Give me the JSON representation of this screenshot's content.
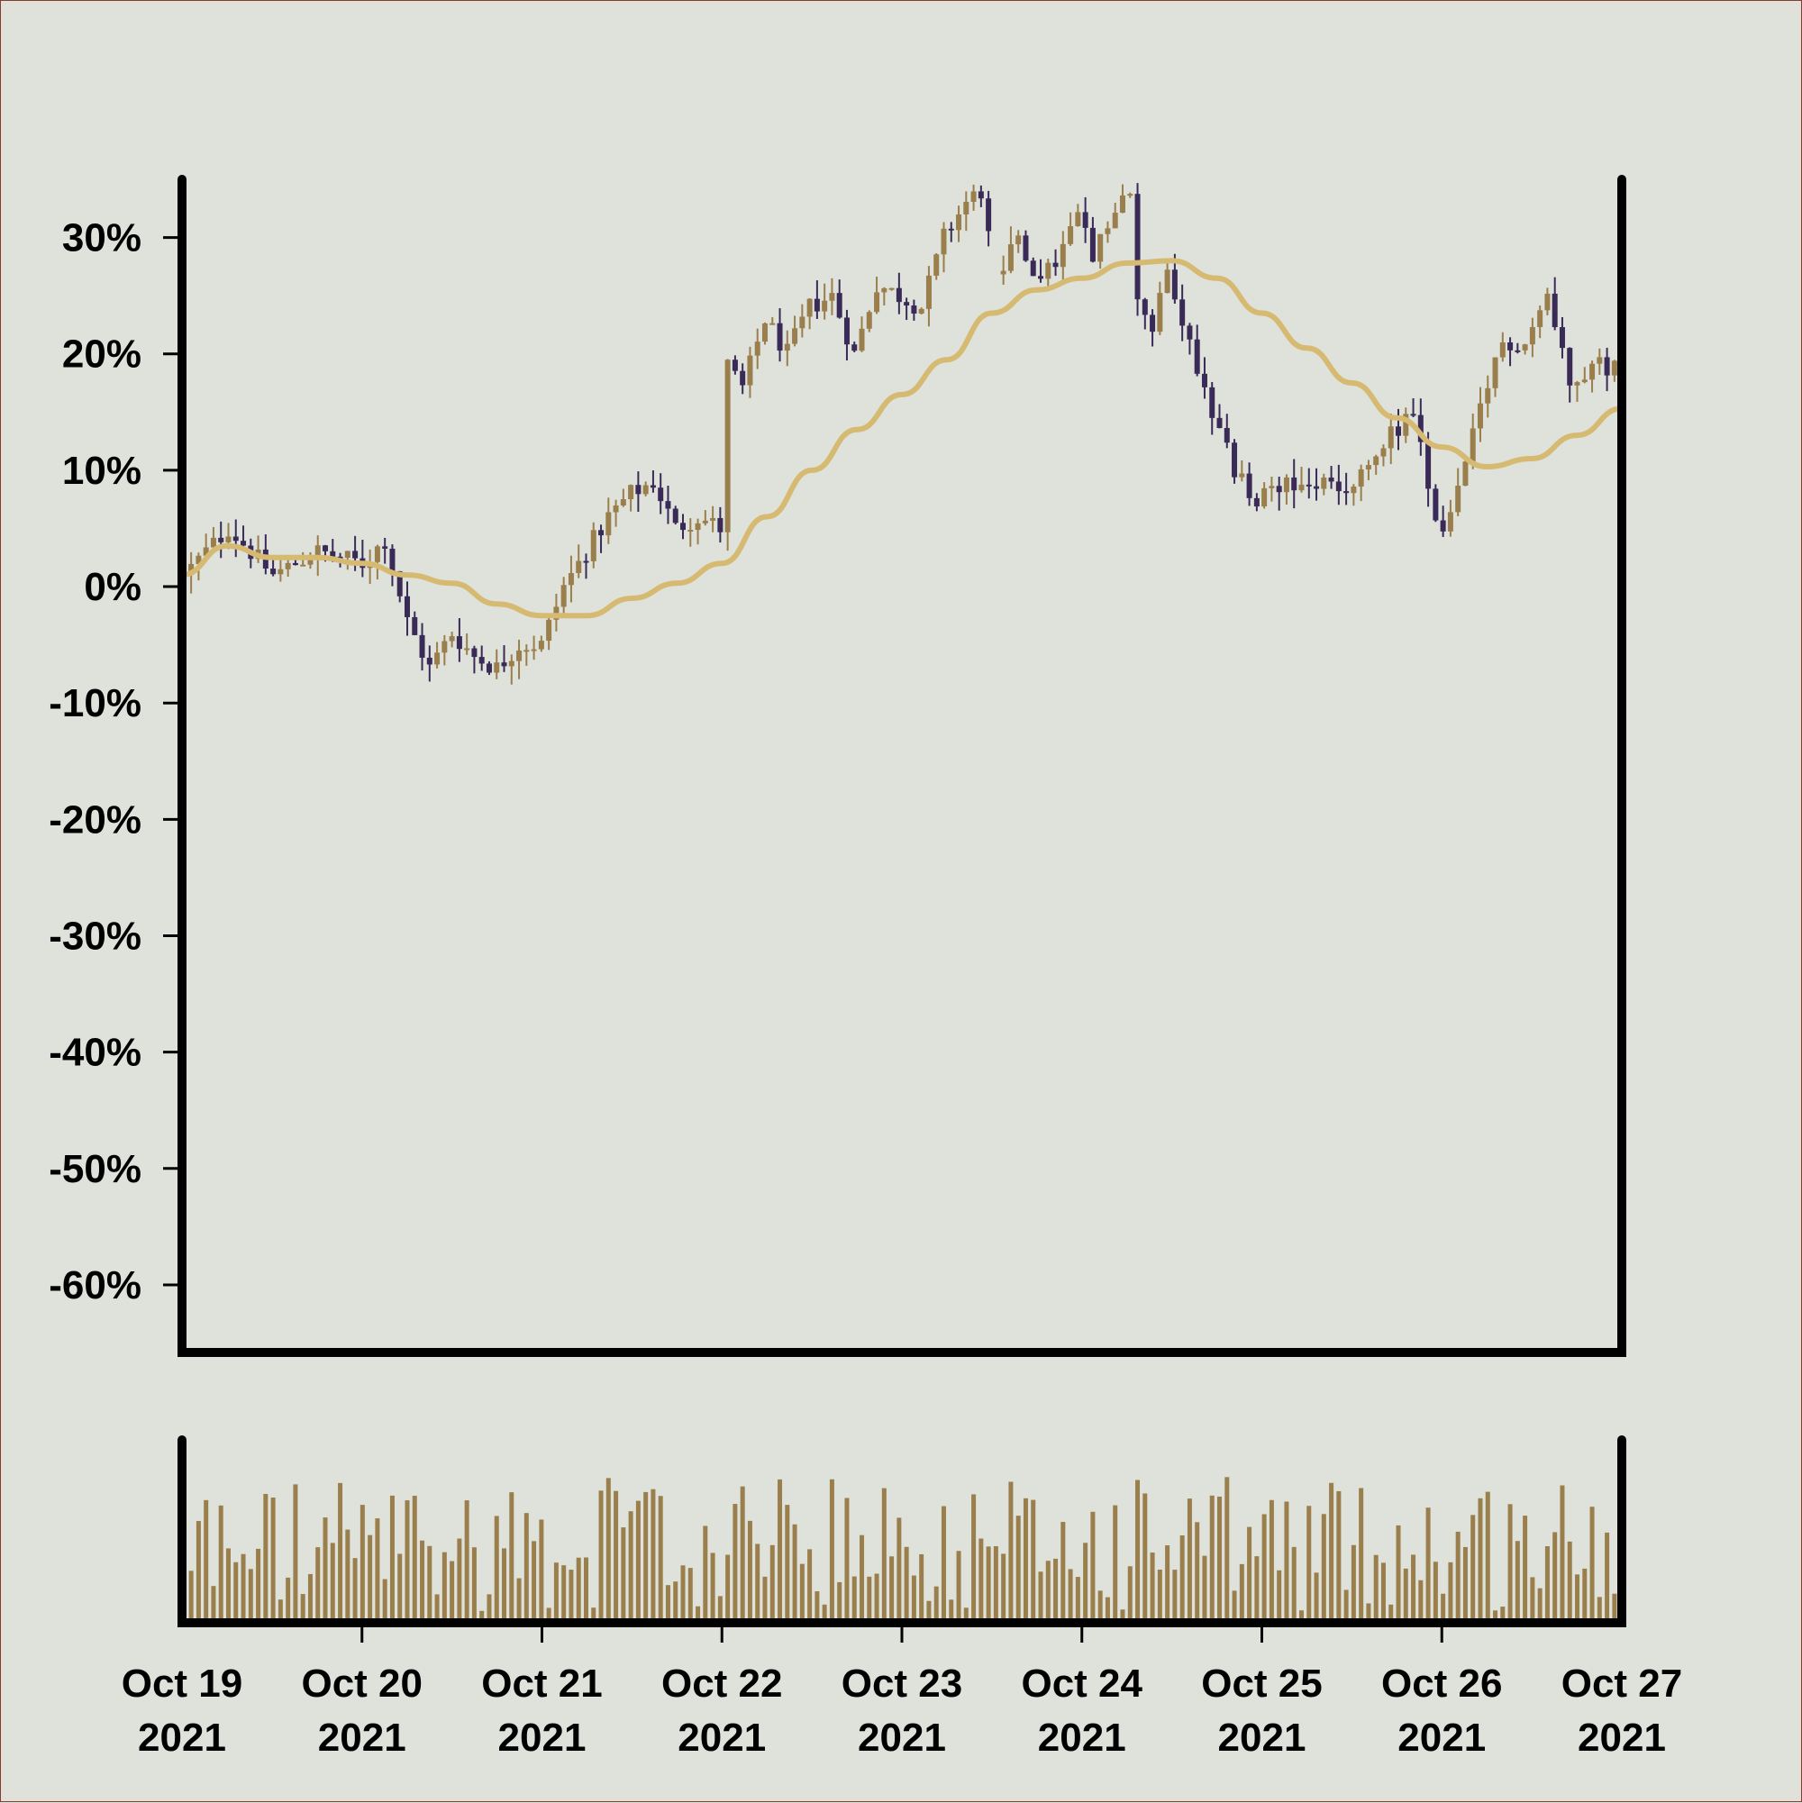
{
  "chart_data": {
    "type": "candlestick",
    "panels": [
      "price",
      "volume"
    ],
    "price_axis": {
      "ticks": [
        30,
        20,
        10,
        0,
        -10,
        -20,
        -30,
        -40,
        -50,
        -60
      ],
      "tick_labels": [
        "30%",
        "20%",
        "10%",
        "0%",
        "-10%",
        "-20%",
        "-30%",
        "-40%",
        "-50%",
        "-60%"
      ],
      "ylim": [
        -65.5,
        35.0
      ]
    },
    "x_axis": {
      "start": "2021-10-19",
      "end": "2021-10-27",
      "tick_labels": [
        {
          "line1": "Oct 19",
          "line2": "2021"
        },
        {
          "line1": "Oct 20",
          "line2": "2021"
        },
        {
          "line1": "Oct 21",
          "line2": "2021"
        },
        {
          "line1": "Oct 22",
          "line2": "2021"
        },
        {
          "line1": "Oct 23",
          "line2": "2021"
        },
        {
          "line1": "Oct 24",
          "line2": "2021"
        },
        {
          "line1": "Oct 25",
          "line2": "2021"
        },
        {
          "line1": "Oct 26",
          "line2": "2021"
        },
        {
          "line1": "Oct 27",
          "line2": "2021"
        }
      ]
    },
    "close_path": [
      [
        "2021-10-19 00:00",
        1
      ],
      [
        "2021-10-19 06:00",
        5
      ],
      [
        "2021-10-19 12:00",
        1
      ],
      [
        "2021-10-19 18:00",
        3
      ],
      [
        "2021-10-20 00:00",
        2
      ],
      [
        "2021-10-20 03:00",
        4
      ],
      [
        "2021-10-20 06:00",
        -3
      ],
      [
        "2021-10-20 09:00",
        -7
      ],
      [
        "2021-10-20 12:00",
        -4
      ],
      [
        "2021-10-20 15:00",
        -6
      ],
      [
        "2021-10-20 18:00",
        -7
      ],
      [
        "2021-10-20 21:00",
        -5
      ],
      [
        "2021-10-21 00:00",
        -5
      ],
      [
        "2021-10-21 03:00",
        0
      ],
      [
        "2021-10-21 06:00",
        3
      ],
      [
        "2021-10-21 09:00",
        6
      ],
      [
        "2021-10-21 12:00",
        8
      ],
      [
        "2021-10-21 15:00",
        9
      ],
      [
        "2021-10-21 18:00",
        5
      ],
      [
        "2021-10-21 21:00",
        6
      ],
      [
        "2021-10-22 00:00",
        5
      ],
      [
        "2021-10-22 01:00",
        19
      ],
      [
        "2021-10-22 03:00",
        17
      ],
      [
        "2021-10-22 06:00",
        23
      ],
      [
        "2021-10-22 09:00",
        20
      ],
      [
        "2021-10-22 12:00",
        24
      ],
      [
        "2021-10-22 15:00",
        25
      ],
      [
        "2021-10-22 18:00",
        20
      ],
      [
        "2021-10-22 21:00",
        26
      ],
      [
        "2021-10-23 00:00",
        25
      ],
      [
        "2021-10-23 03:00",
        24
      ],
      [
        "2021-10-23 06:00",
        30
      ],
      [
        "2021-10-23 09:00",
        33
      ],
      [
        "2021-10-23 11:00",
        34
      ],
      [
        "2021-10-23 13:00",
        26
      ],
      [
        "2021-10-23 16:00",
        30
      ],
      [
        "2021-10-23 19:00",
        26
      ],
      [
        "2021-10-23 22:00",
        29
      ],
      [
        "2021-10-24 00:00",
        32
      ],
      [
        "2021-10-24 02:00",
        28
      ],
      [
        "2021-10-24 04:00",
        31
      ],
      [
        "2021-10-24 07:00",
        34
      ],
      [
        "2021-10-24 08:00",
        25
      ],
      [
        "2021-10-24 10:00",
        22
      ],
      [
        "2021-10-24 12:00",
        27
      ],
      [
        "2021-10-24 15:00",
        21
      ],
      [
        "2021-10-24 18:00",
        15
      ],
      [
        "2021-10-24 21:00",
        10
      ],
      [
        "2021-10-25 00:00",
        7
      ],
      [
        "2021-10-25 03:00",
        9
      ],
      [
        "2021-10-25 06:00",
        8
      ],
      [
        "2021-10-25 09:00",
        9
      ],
      [
        "2021-10-25 12:00",
        8
      ],
      [
        "2021-10-25 15:00",
        10
      ],
      [
        "2021-10-25 18:00",
        13
      ],
      [
        "2021-10-25 21:00",
        15
      ],
      [
        "2021-10-26 00:00",
        5
      ],
      [
        "2021-10-26 02:00",
        6
      ],
      [
        "2021-10-26 06:00",
        15
      ],
      [
        "2021-10-26 09:00",
        21
      ],
      [
        "2021-10-26 12:00",
        21
      ],
      [
        "2021-10-26 15:00",
        25
      ],
      [
        "2021-10-26 18:00",
        18
      ],
      [
        "2021-10-26 21:00",
        19
      ],
      [
        "2021-10-27 00:00",
        19
      ]
    ],
    "moving_average": [
      [
        "2021-10-19 00:00",
        1.0
      ],
      [
        "2021-10-19 06:00",
        3.5
      ],
      [
        "2021-10-19 12:00",
        2.5
      ],
      [
        "2021-10-19 18:00",
        2.5
      ],
      [
        "2021-10-20 00:00",
        2.0
      ],
      [
        "2021-10-20 06:00",
        1.0
      ],
      [
        "2021-10-20 12:00",
        0.3
      ],
      [
        "2021-10-20 18:00",
        -1.5
      ],
      [
        "2021-10-21 00:00",
        -2.5
      ],
      [
        "2021-10-21 06:00",
        -2.5
      ],
      [
        "2021-10-21 12:00",
        -1.0
      ],
      [
        "2021-10-21 18:00",
        0.3
      ],
      [
        "2021-10-22 00:00",
        2.0
      ],
      [
        "2021-10-22 06:00",
        6.0
      ],
      [
        "2021-10-22 12:00",
        10.0
      ],
      [
        "2021-10-22 18:00",
        13.5
      ],
      [
        "2021-10-23 00:00",
        16.5
      ],
      [
        "2021-10-23 06:00",
        19.5
      ],
      [
        "2021-10-23 12:00",
        23.5
      ],
      [
        "2021-10-23 18:00",
        25.5
      ],
      [
        "2021-10-24 00:00",
        26.5
      ],
      [
        "2021-10-24 06:00",
        27.8
      ],
      [
        "2021-10-24 12:00",
        28.0
      ],
      [
        "2021-10-24 18:00",
        26.5
      ],
      [
        "2021-10-25 00:00",
        23.5
      ],
      [
        "2021-10-25 06:00",
        20.5
      ],
      [
        "2021-10-25 12:00",
        17.5
      ],
      [
        "2021-10-25 18:00",
        14.5
      ],
      [
        "2021-10-26 00:00",
        12.0
      ],
      [
        "2021-10-26 06:00",
        10.3
      ],
      [
        "2021-10-26 12:00",
        11.0
      ],
      [
        "2021-10-26 18:00",
        13.0
      ],
      [
        "2021-10-27 00:00",
        15.3
      ]
    ],
    "candles_per_day": 24,
    "gaps": [
      [
        "2021-10-23 11:00",
        "2021-10-23 13:00"
      ],
      [
        "2021-10-24 07:00",
        "2021-10-24 08:00"
      ]
    ],
    "volume_scale": "relative",
    "colors": {
      "up": "#9a7f4c",
      "down": "#3a2a58",
      "moving_average": "#d6ba72",
      "background": "#dee2da",
      "axes": "#000000"
    }
  }
}
